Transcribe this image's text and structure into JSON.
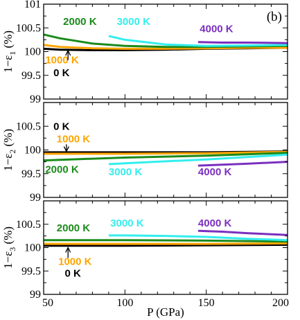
{
  "chart_data": {
    "type": "line",
    "xlabel": "P (GPa)",
    "xlim": [
      50,
      200
    ],
    "xticks": [
      50,
      100,
      150,
      200
    ],
    "colors": {
      "0 K": "#000000",
      "1000 K": "#ffa500",
      "2000 K": "#1a8a1a",
      "3000 K": "#33eeee",
      "4000 K": "#7b2fbf"
    },
    "panels": [
      {
        "ylabel": "1−ε₁ (%)",
        "ylabel_main": "1−ε",
        "ylabel_sub": "1",
        "ylabel_unit": "(%)",
        "tag": "(b)",
        "ylim": [
          99,
          101
        ],
        "yticks": [
          99,
          99.5,
          100,
          100.5,
          101
        ],
        "ytick_labels": [
          "99",
          "99.5",
          "100",
          "100.5",
          "101"
        ],
        "series": [
          {
            "name": "0 K",
            "x": [
              50,
              60,
              80,
              100,
              125,
              150,
              175,
              200
            ],
            "y": [
              100.06,
              100.04,
              100.03,
              100.03,
              100.04,
              100.06,
              100.07,
              100.08
            ]
          },
          {
            "name": "1000 K",
            "x": [
              50,
              60,
              80,
              100,
              125,
              150,
              175,
              200
            ],
            "y": [
              100.14,
              100.1,
              100.07,
              100.06,
              100.06,
              100.07,
              100.08,
              100.08
            ]
          },
          {
            "name": "2000 K",
            "x": [
              50,
              60,
              80,
              100,
              125,
              150,
              175,
              200
            ],
            "y": [
              100.36,
              100.28,
              100.17,
              100.12,
              100.1,
              100.1,
              100.11,
              100.12
            ]
          },
          {
            "name": "3000 K",
            "x": [
              90,
              100,
              125,
              150,
              175,
              200
            ],
            "y": [
              100.33,
              100.25,
              100.15,
              100.12,
              100.13,
              100.14
            ]
          },
          {
            "name": "4000 K",
            "x": [
              145,
              160,
              175,
              200
            ],
            "y": [
              100.2,
              100.19,
              100.19,
              100.18
            ]
          }
        ],
        "annotations": [
          {
            "text": "2000 K",
            "color": "#1a8a1a",
            "x": 62,
            "y": 100.56
          },
          {
            "text": "3000 K",
            "color": "#33eeee",
            "x": 95,
            "y": 100.56
          },
          {
            "text": "4000 K",
            "color": "#7b2fbf",
            "x": 146,
            "y": 100.41
          },
          {
            "text": "1000 K",
            "color": "#ffa500",
            "x": 51,
            "y": 99.75
          },
          {
            "text": "0 K",
            "color": "#000000",
            "x": 56,
            "y": 99.48
          }
        ],
        "arrows": [
          {
            "x": 65,
            "from": 99.82,
            "to": 100.02
          }
        ]
      },
      {
        "ylabel": "1−ε₂ (%)",
        "ylabel_main": "1−ε",
        "ylabel_sub": "2",
        "ylabel_unit": "(%)",
        "tag": "",
        "ylim": [
          99,
          101
        ],
        "yticks": [
          99,
          99.5,
          100,
          100.5,
          101
        ],
        "ytick_labels": [
          "99",
          "99.5",
          "100",
          "100.5",
          ""
        ],
        "series": [
          {
            "name": "0 K",
            "x": [
              50,
              100,
              150,
              200
            ],
            "y": [
              99.95,
              99.95,
              99.95,
              99.97
            ]
          },
          {
            "name": "1000 K",
            "x": [
              50,
              100,
              150,
              200
            ],
            "y": [
              99.92,
              99.92,
              99.93,
              99.96
            ]
          },
          {
            "name": "2000 K",
            "x": [
              50,
              75,
              100,
              125,
              150,
              175,
              200
            ],
            "y": [
              99.78,
              99.81,
              99.84,
              99.86,
              99.88,
              99.91,
              99.94
            ]
          },
          {
            "name": "3000 K",
            "x": [
              90,
              100,
              125,
              150,
              175,
              200
            ],
            "y": [
              99.7,
              99.72,
              99.76,
              99.8,
              99.85,
              99.9
            ]
          },
          {
            "name": "4000 K",
            "x": [
              145,
              160,
              175,
              200
            ],
            "y": [
              99.67,
              99.69,
              99.71,
              99.75
            ]
          }
        ],
        "annotations": [
          {
            "text": "0 K",
            "color": "#000000",
            "x": 56,
            "y": 100.42
          },
          {
            "text": "1000 K",
            "color": "#ffa500",
            "x": 58,
            "y": 100.16
          },
          {
            "text": "2000 K",
            "color": "#1a8a1a",
            "x": 51,
            "y": 99.52
          },
          {
            "text": "3000 K",
            "color": "#33eeee",
            "x": 90,
            "y": 99.47
          },
          {
            "text": "4000 K",
            "color": "#7b2fbf",
            "x": 145,
            "y": 99.47
          }
        ],
        "arrows": [
          {
            "x": 64,
            "from": 100.12,
            "to": 99.97
          }
        ]
      },
      {
        "ylabel": "1−ε₃ (%)",
        "ylabel_main": "1−ε",
        "ylabel_sub": "3",
        "ylabel_unit": "(%)",
        "tag": "",
        "ylim": [
          99,
          101
        ],
        "yticks": [
          99,
          99.5,
          100,
          100.5,
          101
        ],
        "ytick_labels": [
          "99",
          "99.5",
          "100",
          "100.5",
          ""
        ],
        "series": [
          {
            "name": "0 K",
            "x": [
              50,
              100,
              150,
              200
            ],
            "y": [
              100.04,
              100.04,
              100.05,
              100.06
            ]
          },
          {
            "name": "1000 K",
            "x": [
              50,
              100,
              150,
              200
            ],
            "y": [
              100.08,
              100.08,
              100.08,
              100.09
            ]
          },
          {
            "name": "2000 K",
            "x": [
              50,
              100,
              150,
              200
            ],
            "y": [
              100.16,
              100.16,
              100.15,
              100.13
            ]
          },
          {
            "name": "3000 K",
            "x": [
              90,
              100,
              125,
              150,
              175,
              200
            ],
            "y": [
              100.26,
              100.26,
              100.25,
              100.23,
              100.19,
              100.16
            ]
          },
          {
            "name": "4000 K",
            "x": [
              145,
              160,
              175,
              200
            ],
            "y": [
              100.36,
              100.34,
              100.31,
              100.27
            ]
          }
        ],
        "annotations": [
          {
            "text": "2000 K",
            "color": "#1a8a1a",
            "x": 58,
            "y": 100.35
          },
          {
            "text": "3000 K",
            "color": "#33eeee",
            "x": 91,
            "y": 100.45
          },
          {
            "text": "4000 K",
            "color": "#7b2fbf",
            "x": 145,
            "y": 100.45
          },
          {
            "text": "1000 K",
            "color": "#ffa500",
            "x": 59,
            "y": 99.63
          },
          {
            "text": "0 K",
            "color": "#000000",
            "x": 63,
            "y": 99.38
          }
        ],
        "arrows": [
          {
            "x": 65,
            "from": 99.78,
            "to": 100.0
          }
        ]
      }
    ]
  }
}
